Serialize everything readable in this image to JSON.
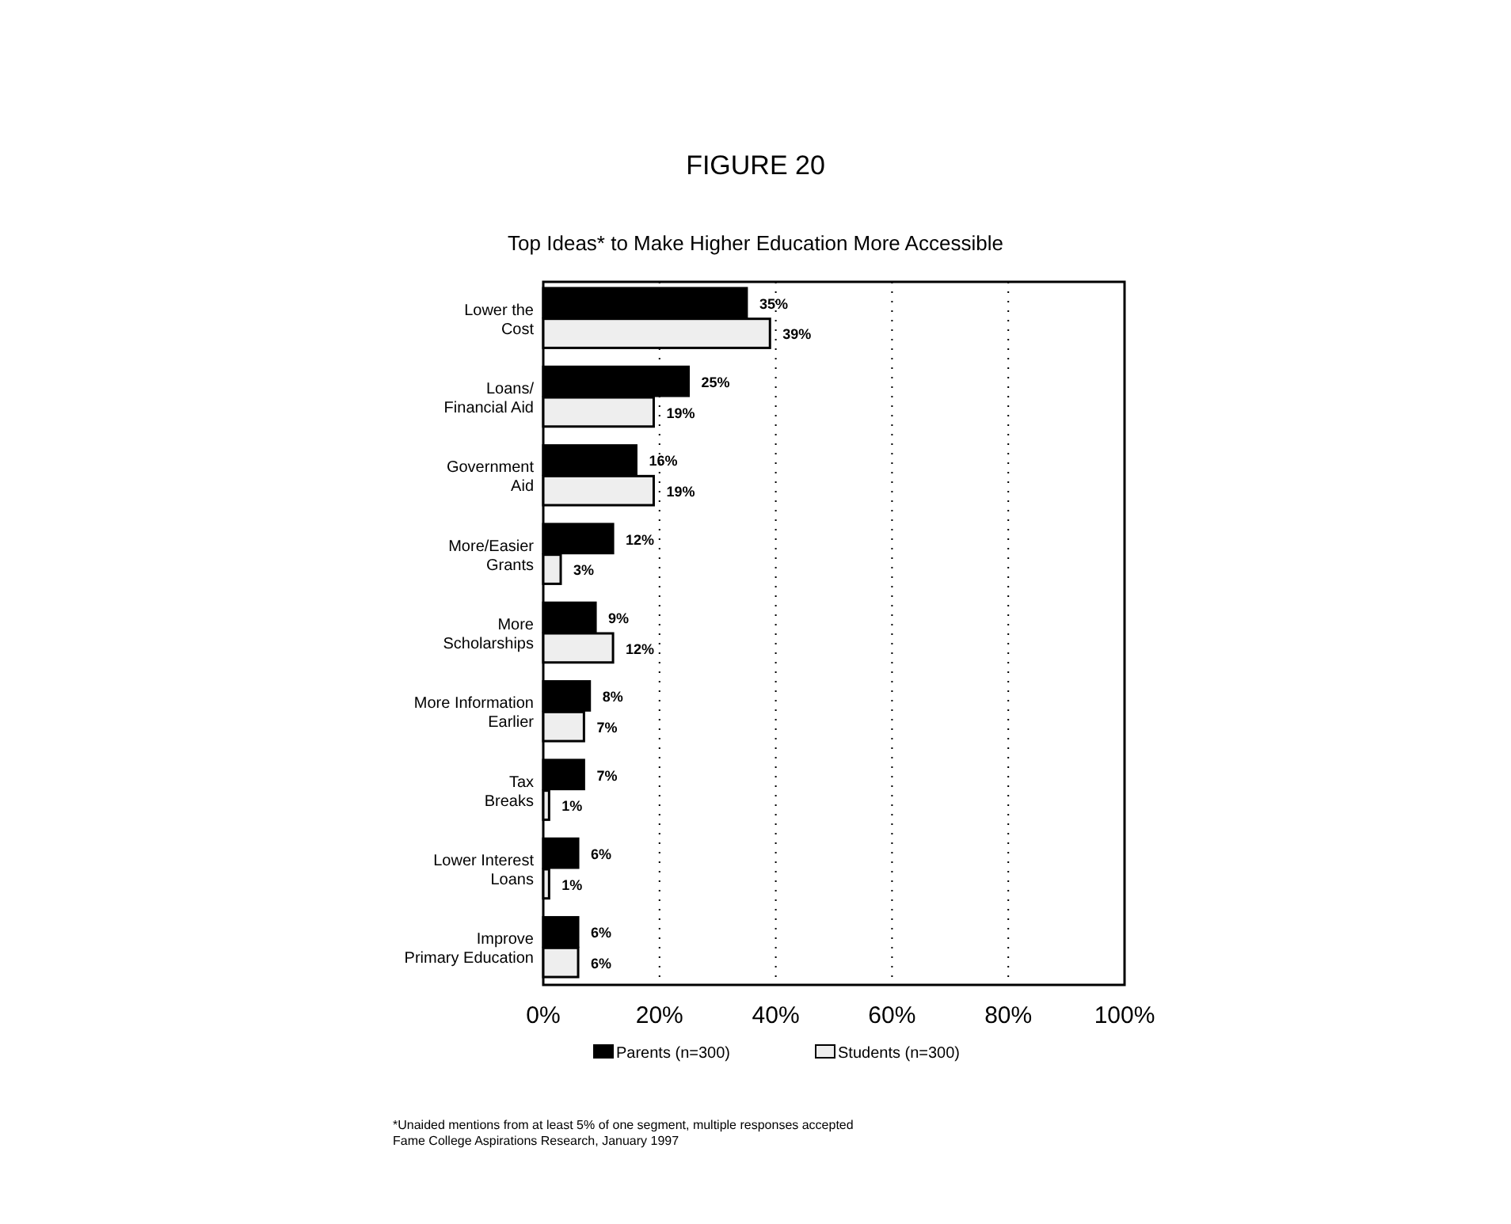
{
  "chart_data": {
    "type": "bar",
    "orientation": "horizontal",
    "title": "FIGURE 20",
    "subtitle": "Top Ideas* to Make Higher Education More Accessible",
    "categories": [
      "Lower the\nCost",
      "Loans/\nFinancial Aid",
      "Government\nAid",
      "More/Easier\nGrants",
      "More\nScholarships",
      "More Information\nEarlier",
      "Tax\nBreaks",
      "Lower Interest\nLoans",
      "Improve\nPrimary Education"
    ],
    "series": [
      {
        "name": "Parents (n=300)",
        "color": "#000000",
        "values": [
          35,
          25,
          16,
          12,
          9,
          8,
          7,
          6,
          6
        ],
        "value_labels": [
          "35%",
          "25%",
          "16%",
          "12%",
          "9%",
          "8%",
          "7%",
          "6%",
          "6%"
        ]
      },
      {
        "name": "Students (n=300)",
        "color": "#eeeeee",
        "values": [
          39,
          19,
          19,
          3,
          12,
          7,
          1,
          1,
          6
        ],
        "value_labels": [
          "39%",
          "19%",
          "19%",
          "3%",
          "12%",
          "7%",
          "1%",
          "1%",
          "6%"
        ]
      }
    ],
    "xlim": [
      0,
      100
    ],
    "xticks": [
      {
        "value": 0,
        "label": "0%"
      },
      {
        "value": 20,
        "label": "20%"
      },
      {
        "value": 40,
        "label": "40%"
      },
      {
        "value": 60,
        "label": "60%"
      },
      {
        "value": 80,
        "label": "80%"
      },
      {
        "value": 100,
        "label": "100%"
      }
    ],
    "grid": "x",
    "legend": "bottom",
    "annotations": [
      "*Unaided mentions from at least 5% of one segment, multiple responses accepted",
      "Fame College Aspirations Research, January 1997"
    ]
  }
}
